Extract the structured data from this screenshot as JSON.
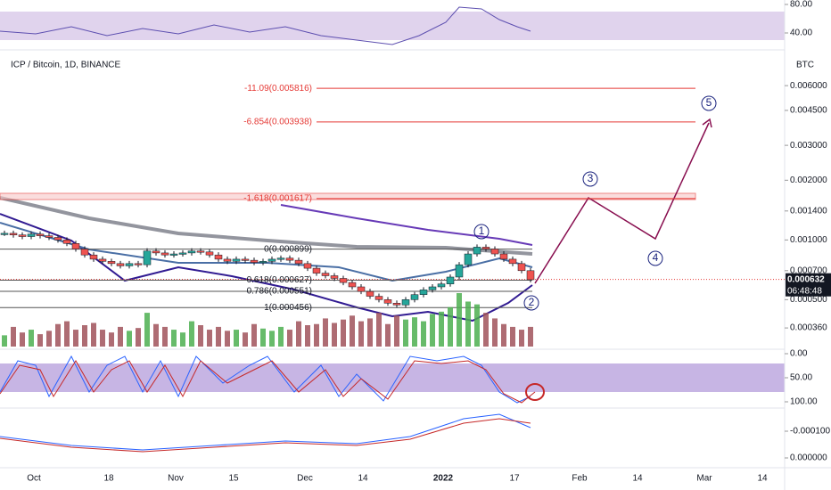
{
  "chart_data": {
    "type": "candle",
    "title": "ICP / Bitcoin, 1D, BINANCE",
    "currency": "BTC",
    "log_scale": true,
    "ylim": [
      0.000287,
      0.0089
    ],
    "yticks": [
      {
        "value": 0.006,
        "label": "0.006000"
      },
      {
        "value": 0.0045,
        "label": "0.004500"
      },
      {
        "value": 0.003,
        "label": "0.003000"
      },
      {
        "value": 0.002,
        "label": "0.002000"
      },
      {
        "value": 0.0014,
        "label": "0.001400"
      },
      {
        "value": 0.001,
        "label": "0.001000"
      },
      {
        "value": 0.0007,
        "label": "0.000700"
      },
      {
        "value": 0.0005,
        "label": "0.000500"
      },
      {
        "value": 0.00036,
        "label": "0.000360"
      }
    ],
    "last_price": {
      "value": 0.000632,
      "label": "0.000632"
    },
    "countdown": "06:48:48",
    "closes": [
      0.00108,
      0.00106,
      0.00104,
      0.00107,
      0.00105,
      0.00103,
      0.001,
      0.00096,
      0.0009,
      0.00084,
      0.0008,
      0.00078,
      0.00076,
      0.00074,
      0.00076,
      0.00075,
      0.00088,
      0.00086,
      0.00084,
      0.00085,
      0.00086,
      0.00088,
      0.00087,
      0.00084,
      0.0008,
      0.00078,
      0.0008,
      0.00079,
      0.00077,
      0.00078,
      0.0008,
      0.00081,
      0.00079,
      0.00076,
      0.00072,
      0.00068,
      0.00066,
      0.00064,
      0.00061,
      0.00058,
      0.00055,
      0.00052,
      0.0005,
      0.00048,
      0.00047,
      0.0005,
      0.00053,
      0.00056,
      0.00058,
      0.0006,
      0.00065,
      0.00075,
      0.00085,
      0.00092,
      0.0009,
      0.00085,
      0.0008,
      0.00076,
      0.0007,
      0.00063
    ],
    "volume": [
      20,
      35,
      25,
      30,
      22,
      28,
      40,
      45,
      30,
      38,
      42,
      30,
      25,
      35,
      28,
      33,
      60,
      40,
      35,
      30,
      25,
      45,
      38,
      30,
      35,
      28,
      30,
      25,
      40,
      32,
      28,
      35,
      30,
      45,
      38,
      40,
      50,
      42,
      48,
      55,
      45,
      50,
      60,
      40,
      55,
      48,
      52,
      45,
      58,
      62,
      70,
      95,
      80,
      75,
      60,
      50,
      40,
      35,
      30,
      35
    ],
    "fib_levels": [
      {
        "value": 0.005816,
        "label": "-11.09(0.005816)"
      },
      {
        "value": 0.003938,
        "label": "-6.854(0.003938)"
      },
      {
        "value": 0.001617,
        "label": "-1.618(0.001617)"
      },
      {
        "value": 0.000899,
        "label": "0(0.000899)"
      },
      {
        "value": 0.000627,
        "label": "0.618(0.000627)"
      },
      {
        "value": 0.000551,
        "label": "0.786(0.000551)"
      },
      {
        "value": 0.000456,
        "label": "1(0.000456)"
      }
    ],
    "waves": [
      "1",
      "2",
      "3",
      "4",
      "5"
    ],
    "x_ticks": [
      "Oct",
      "18",
      "Nov",
      "15",
      "Dec",
      "14",
      "2022",
      "17",
      "Feb",
      "14",
      "Mar",
      "14"
    ],
    "rsi_ticks": [
      {
        "value": 80,
        "label": "80.00"
      },
      {
        "value": 40,
        "label": "40.00"
      }
    ],
    "stoch_ticks": [
      {
        "value": 100,
        "label": "100.00"
      },
      {
        "value": 50,
        "label": "50.00"
      },
      {
        "value": 0,
        "label": "0.00"
      }
    ],
    "macd_ticks": [
      {
        "value": 0,
        "label": "0.000000"
      },
      {
        "value": -0.0001,
        "label": "-0.000100"
      }
    ]
  }
}
